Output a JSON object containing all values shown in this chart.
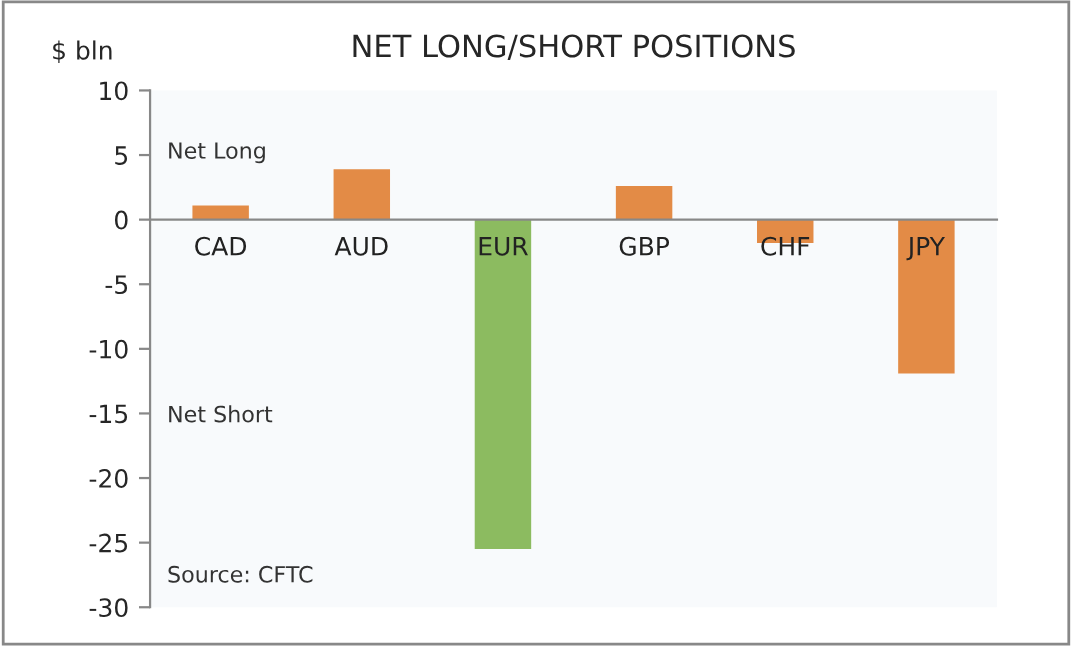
{
  "chart_data": {
    "type": "bar",
    "title": "NET LONG/SHORT POSITIONS",
    "ylabel": "$ bln",
    "categories": [
      "CAD",
      "AUD",
      "EUR",
      "GBP",
      "CHF",
      "JPY"
    ],
    "values": [
      1.1,
      3.9,
      -25.5,
      2.6,
      -1.8,
      -11.9
    ],
    "colors": [
      "#e38b46",
      "#e38b46",
      "#8cbb60",
      "#e38b46",
      "#e38b46",
      "#e38b46"
    ],
    "ylim": [
      -30,
      10
    ],
    "yticks": [
      -30,
      -25,
      -20,
      -15,
      -10,
      -5,
      0,
      5,
      10
    ],
    "grid": false,
    "annotations": [
      "Net Long",
      "Net Short",
      "Source: CFTC"
    ]
  }
}
